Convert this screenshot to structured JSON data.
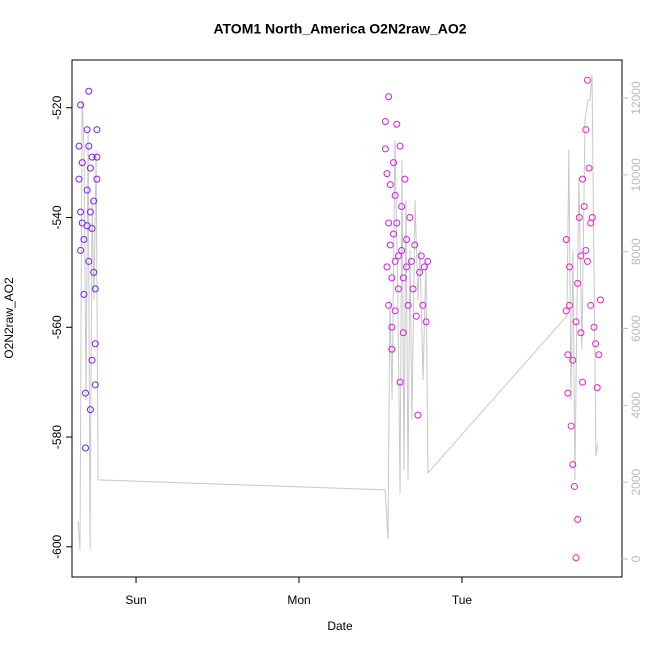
{
  "chart_data": {
    "type": "scatter",
    "title": "ATOM1 North_America O2N2raw_AO2",
    "x_label": "Date",
    "y_label": "O2N2raw_AO2",
    "xlim": [
      -0.393,
      2.982
    ],
    "xticks": [
      {
        "value": 0,
        "label": "Sun"
      },
      {
        "value": 1,
        "label": "Mon"
      },
      {
        "value": 2,
        "label": "Tue"
      }
    ],
    "ylim": [
      -605.5,
      -511.3
    ],
    "yticks": [
      -600,
      -580,
      -560,
      -540,
      -520
    ],
    "y2lim": [
      -469,
      12990
    ],
    "y2ticks": [
      0,
      2000,
      4000,
      6000,
      8000,
      10000,
      12000
    ],
    "series": [
      {
        "color": "#7f1ef5",
        "x": [
          -0.35,
          -0.35,
          -0.34,
          -0.34,
          -0.34,
          -0.33,
          -0.33,
          -0.32,
          -0.32,
          -0.31,
          -0.31,
          -0.3,
          -0.3,
          -0.3,
          -0.29,
          -0.29,
          -0.29,
          -0.28,
          -0.28,
          -0.28,
          -0.27,
          -0.27,
          -0.27,
          -0.26,
          -0.26,
          -0.25,
          -0.25,
          -0.25,
          -0.24,
          -0.24,
          -0.24
        ],
        "values": [
          -527,
          -533,
          -519.5,
          -539,
          -546,
          -530,
          -541,
          -544,
          -554,
          -572,
          -582,
          -524,
          -535,
          -541.5,
          -517,
          -527,
          -548,
          -531,
          -539,
          -575,
          -529,
          -542,
          -566,
          -537,
          -550,
          -553,
          -563,
          -570.5,
          -524,
          -533,
          -529
        ]
      },
      {
        "color": "#d21ee6",
        "x": [
          1.53,
          1.53,
          1.54,
          1.54,
          1.55,
          1.55,
          1.55,
          1.56,
          1.56,
          1.57,
          1.57,
          1.57,
          1.58,
          1.58,
          1.59,
          1.59,
          1.59,
          1.6,
          1.6,
          1.61,
          1.61,
          1.62,
          1.62,
          1.63,
          1.63,
          1.64,
          1.64,
          1.65,
          1.66,
          1.66,
          1.67,
          1.68,
          1.69,
          1.7,
          1.71,
          1.72,
          1.73,
          1.74,
          1.75,
          1.76,
          1.77,
          1.78,
          1.79
        ],
        "values": [
          -522.5,
          -527.5,
          -532,
          -549,
          -518,
          -541,
          -556,
          -534,
          -545,
          -551,
          -560,
          -564,
          -530,
          -543,
          -536,
          -548,
          -557,
          -523,
          -541,
          -547,
          -553,
          -570,
          -527,
          -538,
          -546,
          -551,
          -561,
          -533,
          -544,
          -549,
          -556,
          -540,
          -548,
          -553,
          -545,
          -558,
          -576,
          -550,
          -547,
          -556,
          -549,
          -559,
          -548
        ]
      },
      {
        "color": "#f01ec8",
        "x": [
          2.64,
          2.64,
          2.65,
          2.65,
          2.66,
          2.66,
          2.67,
          2.68,
          2.68,
          2.69,
          2.7,
          2.7,
          2.71,
          2.71,
          2.72,
          2.73,
          2.73,
          2.74,
          2.74,
          2.75,
          2.76,
          2.76,
          2.77,
          2.77,
          2.78,
          2.79,
          2.79,
          2.8,
          2.81,
          2.82,
          2.83,
          2.84,
          2.85
        ],
        "values": [
          -544,
          -557,
          -565,
          -572,
          -549,
          -556,
          -578,
          -566,
          -585,
          -589,
          -602,
          -559,
          -595,
          -552,
          -540,
          -547,
          -561,
          -533,
          -570,
          -538,
          -524,
          -546,
          -515,
          -548,
          -531,
          -556,
          -541,
          -540,
          -560,
          -563,
          -571,
          -565,
          -555
        ]
      },
      {
        "type": "line",
        "axis": "y2",
        "color": "#c8c8c8",
        "x": [
          -0.356,
          -0.344,
          -0.331,
          -0.319,
          -0.307,
          -0.294,
          -0.282,
          -0.27,
          -0.258,
          -0.245,
          -0.233,
          1.528,
          1.546,
          1.558,
          1.571,
          1.589,
          1.607,
          1.62,
          1.632,
          1.644,
          1.656,
          1.669,
          1.681,
          1.693,
          1.712,
          1.73,
          1.742,
          1.761,
          1.779,
          1.791,
          2.644,
          2.656,
          2.669,
          2.681,
          2.693,
          2.706,
          2.718,
          2.736,
          2.755,
          2.773,
          2.785,
          2.798,
          2.822,
          2.834
        ],
        "values": [
          990,
          230,
          11950,
          10650,
          4140,
          11170,
          230,
          9350,
          6740,
          10650,
          2060,
          1800,
          520,
          6740,
          4140,
          10910,
          6740,
          1690,
          10390,
          2320,
          9350,
          2060,
          8050,
          3620,
          9350,
          6740,
          8050,
          4660,
          7790,
          2240,
          6330,
          10650,
          4140,
          8050,
          2060,
          6740,
          9870,
          5440,
          11430,
          11950,
          11950,
          12600,
          2680,
          3020
        ]
      }
    ]
  }
}
